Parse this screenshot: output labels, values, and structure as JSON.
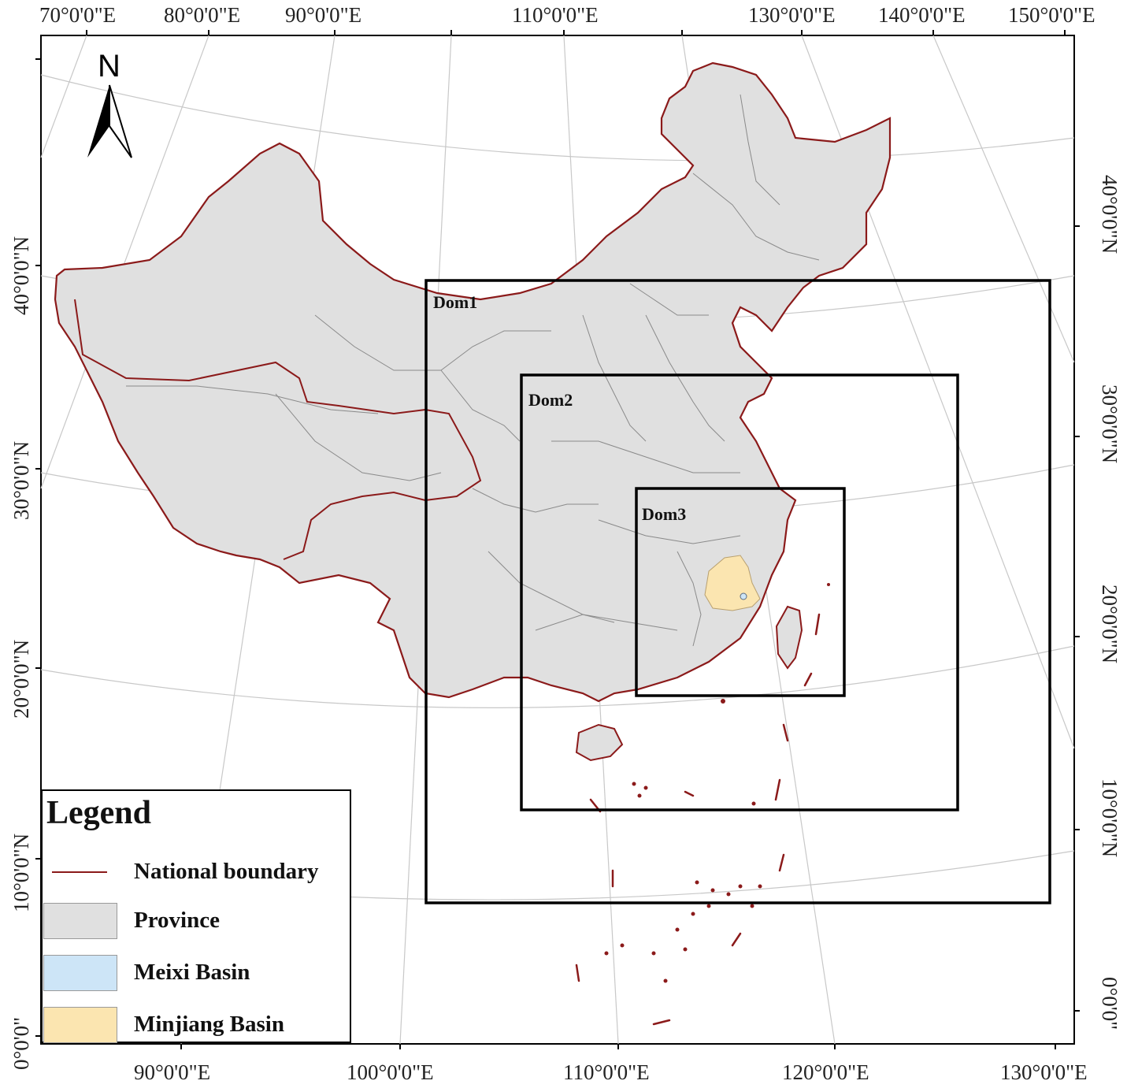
{
  "map": {
    "top_lon_labels": [
      "70°0'0\"E",
      "80°0'0\"E",
      "90°0'0\"E",
      "110°0'0\"E",
      "130°0'0\"E",
      "140°0'0\"E",
      "150°0'0\"E"
    ],
    "bottom_lon_labels": [
      "90°0'0\"E",
      "100°0'0\"E",
      "110°0'0\"E",
      "120°0'0\"E",
      "130°0'0\"E"
    ],
    "left_lat_labels": [
      "40°0'0\"N",
      "30°0'0\"N",
      "20°0'0\"N",
      "10°0'0\"N",
      "0°0'0\""
    ],
    "right_lat_labels": [
      "40°0'0\"N",
      "30°0'0\"N",
      "20°0'0\"N",
      "10°0'0\"N",
      "0°0'0\""
    ],
    "north_arrow_label": "N",
    "domains": [
      {
        "label": "Dom1"
      },
      {
        "label": "Dom2"
      },
      {
        "label": "Dom3"
      }
    ],
    "colors": {
      "national_boundary": "#8b1a1a",
      "province_fill": "#e0e0e0",
      "province_edge": "#8a8a8a",
      "meixi_basin": "#cde5f7",
      "minjiang_basin": "#fbe5b0",
      "domain_box": "#000000",
      "graticule": "#c8c8c8"
    }
  },
  "legend": {
    "title": "Legend",
    "items": [
      {
        "label": "National boundary",
        "symbol": "line"
      },
      {
        "label": "Province",
        "symbol": "fill"
      },
      {
        "label": "Meixi Basin",
        "symbol": "fill"
      },
      {
        "label": "Minjiang Basin",
        "symbol": "fill"
      }
    ]
  }
}
